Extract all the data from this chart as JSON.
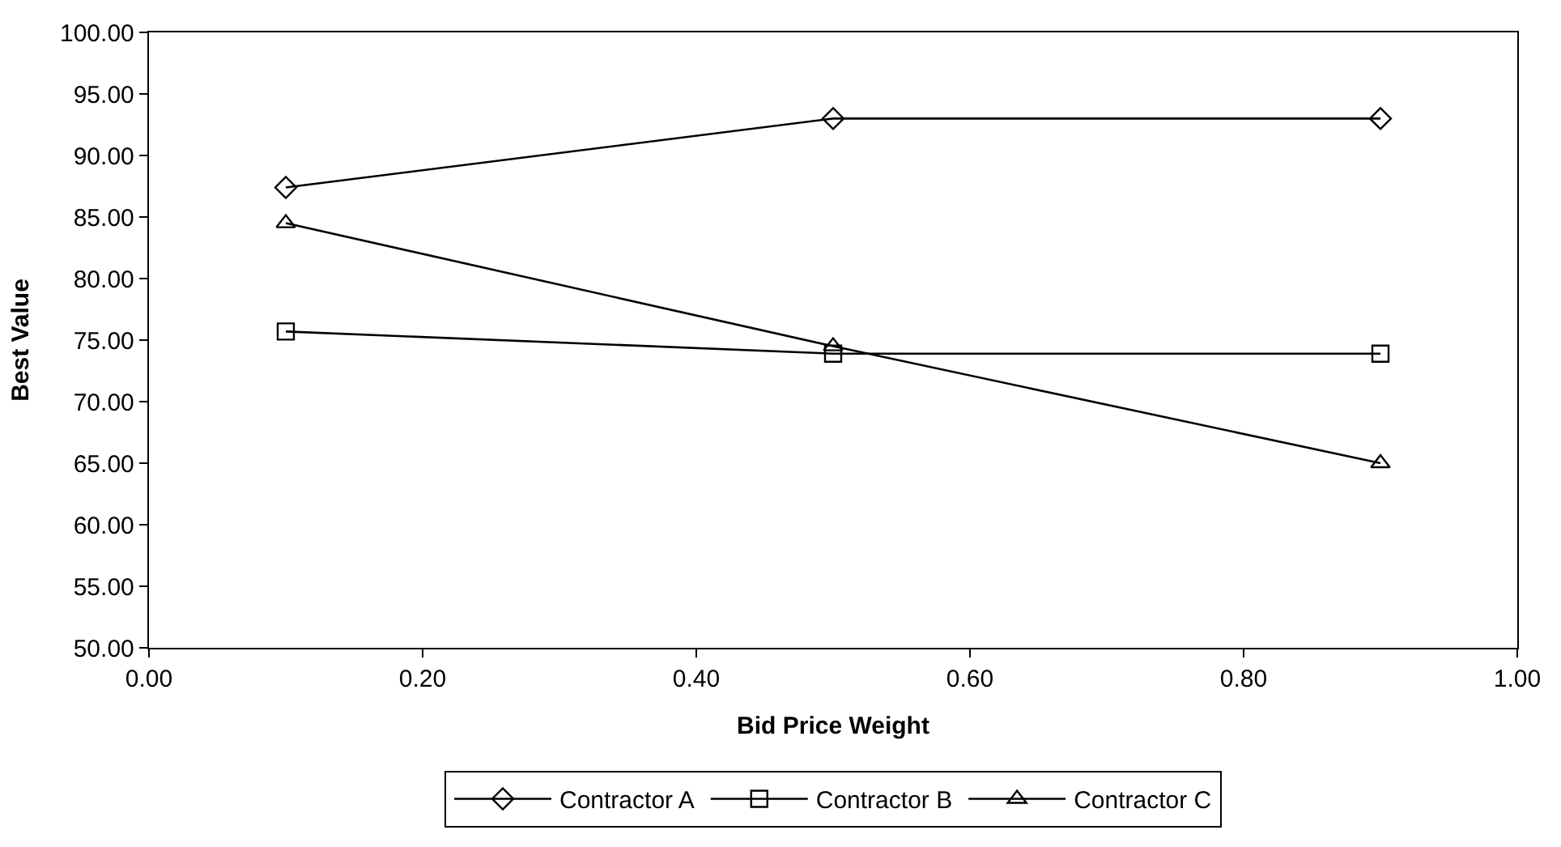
{
  "chart_data": {
    "type": "line",
    "xlabel": "Bid Price Weight",
    "ylabel": "Best Value",
    "x": [
      0.1,
      0.5,
      0.9
    ],
    "series": [
      {
        "name": "Contractor A",
        "color": "#000000",
        "marker": "diamond",
        "values": [
          87.4,
          93.0,
          93.0
        ]
      },
      {
        "name": "Contractor B",
        "color": "#000000",
        "marker": "square",
        "values": [
          75.7,
          73.9,
          73.9
        ]
      },
      {
        "name": "Contractor C",
        "color": "#000000",
        "marker": "triangle",
        "values": [
          84.5,
          74.5,
          65.0
        ]
      }
    ],
    "xlim": [
      0,
      1
    ],
    "xticks": [
      {
        "value": 0,
        "label": "0.00"
      },
      {
        "value": 0.2,
        "label": "0.20"
      },
      {
        "value": 0.4,
        "label": "0.40"
      },
      {
        "value": 0.6,
        "label": "0.60"
      },
      {
        "value": 0.8,
        "label": "0.80"
      },
      {
        "value": 1,
        "label": "1.00"
      }
    ],
    "ylim": [
      50,
      100
    ],
    "yticks": [
      {
        "value": 50,
        "label": "50.00"
      },
      {
        "value": 55,
        "label": "55.00"
      },
      {
        "value": 60,
        "label": "60.00"
      },
      {
        "value": 65,
        "label": "65.00"
      },
      {
        "value": 70,
        "label": "70.00"
      },
      {
        "value": 75,
        "label": "75.00"
      },
      {
        "value": 80,
        "label": "80.00"
      },
      {
        "value": 85,
        "label": "85.00"
      },
      {
        "value": 90,
        "label": "90.00"
      },
      {
        "value": 95,
        "label": "95.00"
      },
      {
        "value": 100,
        "label": "100.00"
      }
    ],
    "grid": false,
    "legend": "bottom",
    "line_style": "solid"
  }
}
